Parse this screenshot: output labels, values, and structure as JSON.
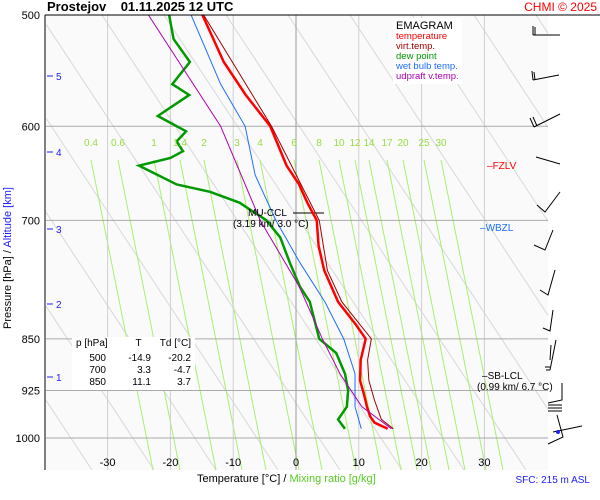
{
  "header": {
    "title": "Prostejov    01.11.2025 12 UTC",
    "credit": "CHMI © 2025"
  },
  "legend": {
    "title": "EMAGRAM",
    "items": [
      {
        "label": "temperature",
        "color": "#ff0000"
      },
      {
        "label": "virt.temp.",
        "color": "#a00000"
      },
      {
        "label": "dew point",
        "color": "#009900"
      },
      {
        "label": "wet bulb temp.",
        "color": "#1e6fff"
      },
      {
        "label": "udpraft v.temp.",
        "color": "#b000b0"
      }
    ]
  },
  "chart_data": {
    "type": "line",
    "xlabel": "Temperature [°C]",
    "xlabel_sep": "/",
    "xlabel2": "Mixing ratio [g/kg]",
    "ylabel": "Pressure [hPa]",
    "ylabel_sep": "/",
    "ylabel2": "Altitude [km]",
    "x_range": [
      -38,
      42
    ],
    "y_range_hPa": [
      500,
      1000
    ],
    "y_scale": "log",
    "x_ticks": [
      "-30",
      "-20",
      "-10",
      "0",
      "10",
      "20",
      "30"
    ],
    "y_ticks": [
      "500",
      "600",
      "700",
      "850",
      "925",
      "1000"
    ],
    "alt_ticks": [
      "5",
      "4",
      "3",
      "2",
      "1"
    ],
    "mixing_ratio_labels": [
      "0.4",
      "0.6",
      "1",
      "1.4",
      "2",
      "3",
      "4",
      "6",
      "8",
      "10",
      "12",
      "14",
      "17",
      "20",
      "25",
      "30"
    ],
    "series": [
      {
        "name": "temperature",
        "color": "#ff0000",
        "points": [
          [
            500,
            -14.9
          ],
          [
            540,
            -11.5
          ],
          [
            570,
            -8
          ],
          [
            600,
            -4.1
          ],
          [
            640,
            -1.5
          ],
          [
            660,
            0.5
          ],
          [
            680,
            1.8
          ],
          [
            700,
            3.3
          ],
          [
            730,
            3.6
          ],
          [
            760,
            4.5
          ],
          [
            800,
            6.7
          ],
          [
            830,
            9.5
          ],
          [
            850,
            11.1
          ],
          [
            880,
            10.3
          ],
          [
            910,
            10.2
          ],
          [
            930,
            10.8
          ],
          [
            950,
            11.3
          ],
          [
            965,
            11.8
          ],
          [
            975,
            12.5
          ],
          [
            985,
            14.6
          ]
        ]
      },
      {
        "name": "virt.temp.",
        "color": "#a00000",
        "points": [
          [
            500,
            -14.7
          ],
          [
            600,
            -3.9
          ],
          [
            700,
            3.7
          ],
          [
            760,
            5
          ],
          [
            800,
            7.3
          ],
          [
            850,
            12
          ],
          [
            880,
            11.4
          ],
          [
            910,
            11.6
          ],
          [
            940,
            12.5
          ],
          [
            970,
            13.6
          ],
          [
            985,
            15.5
          ]
        ]
      },
      {
        "name": "dew point",
        "color": "#009900",
        "points": [
          [
            500,
            -20.2
          ],
          [
            520,
            -19.5
          ],
          [
            540,
            -16.9
          ],
          [
            560,
            -19.7
          ],
          [
            570,
            -17
          ],
          [
            590,
            -22
          ],
          [
            605,
            -17.5
          ],
          [
            615,
            -19
          ],
          [
            625,
            -18
          ],
          [
            632,
            -20
          ],
          [
            640,
            -25
          ],
          [
            660,
            -19
          ],
          [
            668,
            -13.7
          ],
          [
            680,
            -9
          ],
          [
            700,
            -4.7
          ],
          [
            720,
            -2.5
          ],
          [
            750,
            -1
          ],
          [
            780,
            0.6
          ],
          [
            800,
            2.2
          ],
          [
            850,
            3.7
          ],
          [
            870,
            6.4
          ],
          [
            900,
            7.8
          ],
          [
            925,
            8.3
          ],
          [
            950,
            8.1
          ],
          [
            970,
            6.7
          ],
          [
            985,
            7.8
          ]
        ]
      },
      {
        "name": "wet bulb temp.",
        "color": "#1e6fff",
        "points": [
          [
            500,
            -16.7
          ],
          [
            560,
            -12
          ],
          [
            600,
            -8.1
          ],
          [
            650,
            -6.5
          ],
          [
            700,
            -3.2
          ],
          [
            750,
            0.6
          ],
          [
            800,
            4.6
          ],
          [
            850,
            7.6
          ],
          [
            900,
            9.4
          ],
          [
            950,
            9.4
          ],
          [
            985,
            10.4
          ]
        ]
      },
      {
        "name": "udpraft v.temp.",
        "color": "#b000b0",
        "points": [
          [
            500,
            -23.5
          ],
          [
            600,
            -12
          ],
          [
            700,
            -5.7
          ],
          [
            780,
            0.5
          ],
          [
            850,
            4.2
          ],
          [
            900,
            7
          ],
          [
            950,
            10.5
          ],
          [
            985,
            15.2
          ]
        ]
      }
    ]
  },
  "table": {
    "headers": [
      "p [hPa]",
      "T",
      "Td [°C]"
    ],
    "rows": [
      [
        "500",
        "-14.9",
        "-20.2"
      ],
      [
        "700",
        "3.3",
        "-4.7"
      ],
      [
        "850",
        "11.1",
        "3.7"
      ]
    ]
  },
  "levels": {
    "fzlv": "FZLV",
    "wbzl": "WBZL",
    "sb_lcl": "SB-LCL",
    "sb_lcl_val": "(0.99 km/ 6.7 °C)",
    "mu_ccl": "MU-CCL",
    "mu_ccl_val": "(3.19 km/ 3.0 °C)"
  },
  "footer": {
    "sfc": "SFC: 215 m ASL"
  }
}
